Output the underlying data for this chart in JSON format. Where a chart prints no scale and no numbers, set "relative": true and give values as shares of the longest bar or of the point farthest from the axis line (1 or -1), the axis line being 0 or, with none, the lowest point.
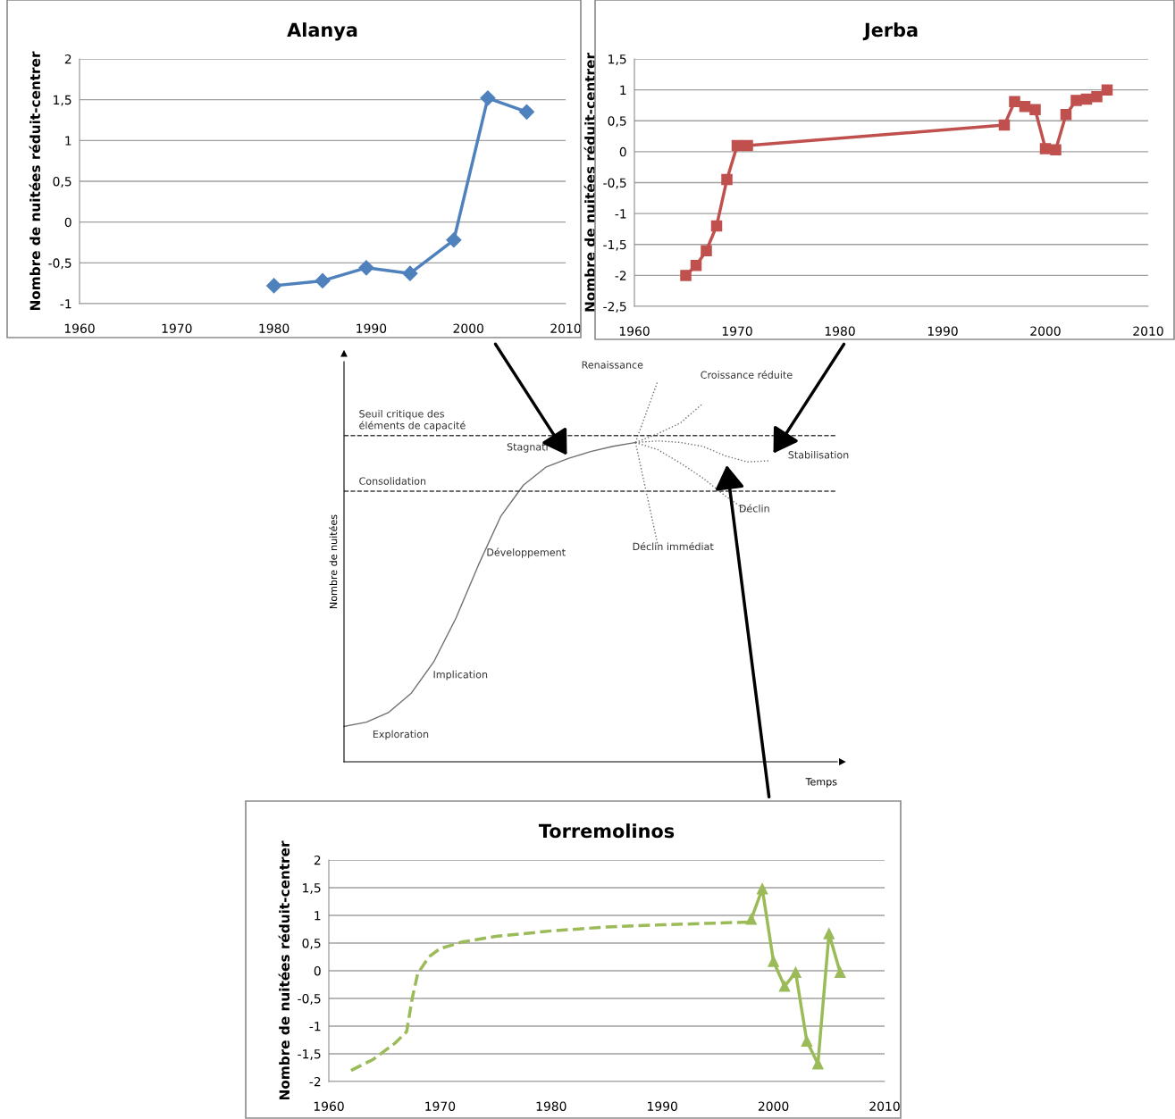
{
  "chart_data": [
    {
      "type": "line",
      "title": "Alanya",
      "ylabel": "Nombre de nuitées réduit-centrer",
      "xlim": [
        1960,
        2010
      ],
      "xticks": [
        1960,
        1970,
        1980,
        1990,
        2000,
        2010
      ],
      "ylim": [
        -1,
        2
      ],
      "yticks": [
        {
          "value": -1,
          "label": "-1"
        },
        {
          "value": -0.5,
          "label": "-0,5"
        },
        0,
        {
          "value": 0.5,
          "label": "0,5"
        },
        1,
        {
          "value": 1.5,
          "label": "1,5"
        },
        2
      ],
      "grid": "y",
      "legend": false,
      "series": [
        {
          "color": "#4f81bd",
          "marker": "diamond",
          "line_style": "solid",
          "x": [
            1980,
            1985,
            1989.5,
            1994,
            1998.5,
            2002,
            2006
          ],
          "values": [
            -0.78,
            -0.72,
            -0.56,
            -0.63,
            -0.22,
            1.52,
            1.35
          ]
        }
      ]
    },
    {
      "type": "line",
      "title": "Jerba",
      "ylabel": "Nombre de nuitées réduit-centrer",
      "xlim": [
        1960,
        2010
      ],
      "xticks": [
        1960,
        1970,
        1980,
        1990,
        2000,
        2010
      ],
      "ylim": [
        -2.5,
        1.5
      ],
      "yticks": [
        {
          "value": -2.5,
          "label": "-2,5"
        },
        {
          "value": -2,
          "label": "-2"
        },
        {
          "value": -1.5,
          "label": "-1,5"
        },
        {
          "value": -1,
          "label": "-1"
        },
        {
          "value": -0.5,
          "label": "-0,5"
        },
        0,
        {
          "value": 0.5,
          "label": "0,5"
        },
        1,
        {
          "value": 1.5,
          "label": "1,5"
        }
      ],
      "grid": "y",
      "legend": false,
      "series": [
        {
          "color": "#c0504d",
          "marker": "square",
          "line_style": "solid",
          "x": [
            1965,
            1966,
            1967,
            1968,
            1969,
            1970,
            1971,
            1996,
            1997,
            1998,
            1999,
            2000,
            2001,
            2002,
            2003,
            2004,
            2005,
            2006
          ],
          "values": [
            -2.0,
            -1.84,
            -1.6,
            -1.2,
            -0.45,
            0.1,
            0.1,
            0.43,
            0.81,
            0.73,
            0.68,
            0.05,
            0.03,
            0.6,
            0.83,
            0.85,
            0.89,
            1.0
          ]
        }
      ]
    },
    {
      "type": "line",
      "relative": true,
      "xlabel": "Temps",
      "ylabel": "Nombre de nuitées",
      "legend": false,
      "grid": false,
      "categories": [
        null,
        null,
        null,
        null,
        null,
        null,
        null,
        null,
        null,
        null,
        null,
        null,
        null,
        null,
        null,
        null,
        null,
        null,
        null,
        null,
        null,
        null,
        null
      ],
      "ref_lines": [
        {
          "axis": "y",
          "value": 0.856,
          "label": "Seuil critique des éléments de capacité",
          "color": "#404040",
          "line_style": "dashed"
        },
        {
          "axis": "y",
          "value": 0.71,
          "label": "Consolidation",
          "color": "#404040",
          "line_style": "dashed"
        }
      ],
      "series": [
        {
          "color": "#707070",
          "marker": "none",
          "line_style": "solid",
          "values": [
            0.093,
            0.104,
            0.13,
            0.18,
            0.262,
            0.378,
            0.517,
            0.645,
            0.726,
            0.773,
            0.796,
            0.814,
            0.828,
            0.838,
            null,
            null,
            null,
            null,
            null,
            null,
            null,
            null,
            null
          ]
        },
        {
          "color": "#707070",
          "marker": "none",
          "line_style": "dotted",
          "values": [
            null,
            null,
            null,
            null,
            null,
            null,
            null,
            null,
            null,
            null,
            null,
            null,
            null,
            0.838,
            1.0,
            null,
            null,
            null,
            null,
            null,
            null,
            null,
            null
          ]
        },
        {
          "color": "#707070",
          "marker": "none",
          "line_style": "dotted",
          "values": [
            null,
            null,
            null,
            null,
            null,
            null,
            null,
            null,
            null,
            null,
            null,
            null,
            null,
            0.838,
            0.861,
            0.889,
            0.94,
            null,
            null,
            null,
            null,
            null,
            null
          ]
        },
        {
          "color": "#707070",
          "marker": "none",
          "line_style": "dotted",
          "values": [
            null,
            null,
            null,
            null,
            null,
            null,
            null,
            null,
            null,
            null,
            null,
            null,
            null,
            0.838,
            0.842,
            0.838,
            0.828,
            0.803,
            0.787,
            0.79,
            null,
            null,
            null
          ]
        },
        {
          "color": "#707070",
          "marker": "none",
          "line_style": "dotted",
          "values": [
            null,
            null,
            null,
            null,
            null,
            null,
            null,
            null,
            null,
            null,
            null,
            null,
            null,
            0.838,
            0.819,
            0.784,
            0.745,
            0.698,
            0.657,
            null,
            null,
            null,
            null
          ]
        },
        {
          "color": "#707070",
          "marker": "none",
          "line_style": "dotted",
          "values": [
            null,
            null,
            null,
            null,
            null,
            null,
            null,
            null,
            null,
            null,
            null,
            null,
            null,
            0.838,
            0.568,
            null,
            null,
            null,
            null,
            null,
            null,
            null,
            null
          ]
        }
      ],
      "annotations": [
        "Exploration",
        "Implication",
        "Développement",
        "Stagnati",
        "Renaissance",
        "Croissance réduite",
        "Stabilisation",
        "Déclin",
        "Déclin immédiat"
      ]
    },
    {
      "type": "line",
      "title": "Torremolinos",
      "ylabel": "Nombre de nuitées réduit-centrer",
      "xlim": [
        1960,
        2010
      ],
      "xticks": [
        1960,
        1970,
        1980,
        1990,
        2000,
        2010
      ],
      "ylim": [
        -2,
        2
      ],
      "yticks": [
        {
          "value": -2,
          "label": "-2"
        },
        {
          "value": -1.5,
          "label": "-1,5"
        },
        {
          "value": -1,
          "label": "-1"
        },
        {
          "value": -0.5,
          "label": "-0,5"
        },
        0,
        {
          "value": 0.5,
          "label": "0,5"
        },
        1,
        {
          "value": 1.5,
          "label": "1,5"
        },
        2
      ],
      "grid": "y",
      "legend": false,
      "series": [
        {
          "color": "#9bbb59",
          "marker": "none",
          "line_style": "dashed",
          "x": [
            1962,
            1964,
            1966,
            1967,
            1967.5,
            1968,
            1969,
            1970,
            1972,
            1975,
            1980,
            1985,
            1990,
            1998
          ],
          "values": [
            -1.8,
            -1.6,
            -1.3,
            -1.1,
            -0.5,
            -0.05,
            0.25,
            0.4,
            0.52,
            0.62,
            0.72,
            0.79,
            0.83,
            0.88
          ]
        },
        {
          "color": "#9bbb59",
          "marker": "triangle",
          "line_style": "solid",
          "x": [
            1998,
            1999,
            2000,
            2001,
            2002,
            2003,
            2004,
            2005,
            2006
          ],
          "values": [
            0.93,
            1.48,
            0.17,
            -0.28,
            -0.03,
            -1.27,
            -1.68,
            0.67,
            -0.03
          ]
        }
      ]
    }
  ]
}
